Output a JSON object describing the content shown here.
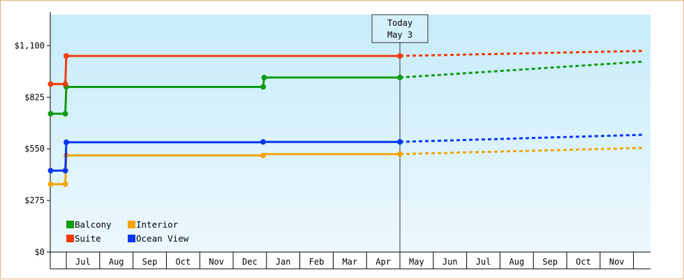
{
  "chart_data": {
    "type": "line",
    "currency_prefix": "$",
    "y_ticks": [
      "$0",
      "$275",
      "$550",
      "$825",
      "$1,100"
    ],
    "ylim": [
      0,
      1265
    ],
    "x_months": [
      "Jul",
      "Aug",
      "Sep",
      "Oct",
      "Nov",
      "Dec",
      "Jan",
      "Feb",
      "Mar",
      "Apr",
      "May",
      "Jun",
      "Jul",
      "Aug",
      "Sep",
      "Oct",
      "Nov"
    ],
    "today_label_line1": "Today",
    "today_label_line2": "May 3",
    "legend_position": "bottom-left",
    "series": [
      {
        "name": "Balcony",
        "color": "#129a12",
        "actual": [
          [
            -0.47,
            737
          ],
          [
            -0.03,
            737
          ],
          [
            0.0,
            880
          ],
          [
            5.9,
            880
          ],
          [
            5.93,
            930
          ],
          [
            10.0,
            930
          ]
        ],
        "markers": [
          [
            -0.47,
            737
          ],
          [
            -0.03,
            737
          ],
          [
            0.0,
            880
          ],
          [
            5.9,
            880
          ],
          [
            5.93,
            930
          ],
          [
            10.0,
            930
          ]
        ],
        "forecast": [
          [
            10.0,
            930
          ],
          [
            17.3,
            1015
          ]
        ]
      },
      {
        "name": "Interior",
        "color": "#f4a406",
        "actual": [
          [
            -0.47,
            362
          ],
          [
            -0.03,
            362
          ],
          [
            0.0,
            515
          ],
          [
            5.9,
            515
          ],
          [
            5.93,
            522
          ],
          [
            10.0,
            522
          ]
        ],
        "markers": [
          [
            -0.47,
            362
          ],
          [
            -0.03,
            362
          ],
          [
            0.0,
            515
          ],
          [
            5.9,
            515
          ],
          [
            10.0,
            522
          ]
        ],
        "forecast": [
          [
            10.0,
            522
          ],
          [
            17.3,
            555
          ]
        ]
      },
      {
        "name": "Suite",
        "color": "#f03c0c",
        "actual": [
          [
            -0.47,
            895
          ],
          [
            -0.03,
            895
          ],
          [
            0.0,
            1045
          ],
          [
            10.0,
            1045
          ]
        ],
        "markers": [
          [
            -0.47,
            895
          ],
          [
            -0.03,
            895
          ],
          [
            0.0,
            1045
          ],
          [
            10.0,
            1045
          ]
        ],
        "forecast": [
          [
            10.0,
            1045
          ],
          [
            17.3,
            1072
          ]
        ]
      },
      {
        "name": "Ocean View",
        "color": "#0a36f2",
        "actual": [
          [
            -0.47,
            434
          ],
          [
            -0.03,
            434
          ],
          [
            0.0,
            585
          ],
          [
            5.9,
            585
          ],
          [
            5.93,
            587
          ],
          [
            10.0,
            587
          ]
        ],
        "markers": [
          [
            -0.47,
            434
          ],
          [
            -0.03,
            434
          ],
          [
            0.0,
            585
          ],
          [
            5.9,
            587
          ],
          [
            10.0,
            587
          ]
        ],
        "forecast": [
          [
            10.0,
            587
          ],
          [
            17.3,
            625
          ]
        ]
      }
    ]
  }
}
